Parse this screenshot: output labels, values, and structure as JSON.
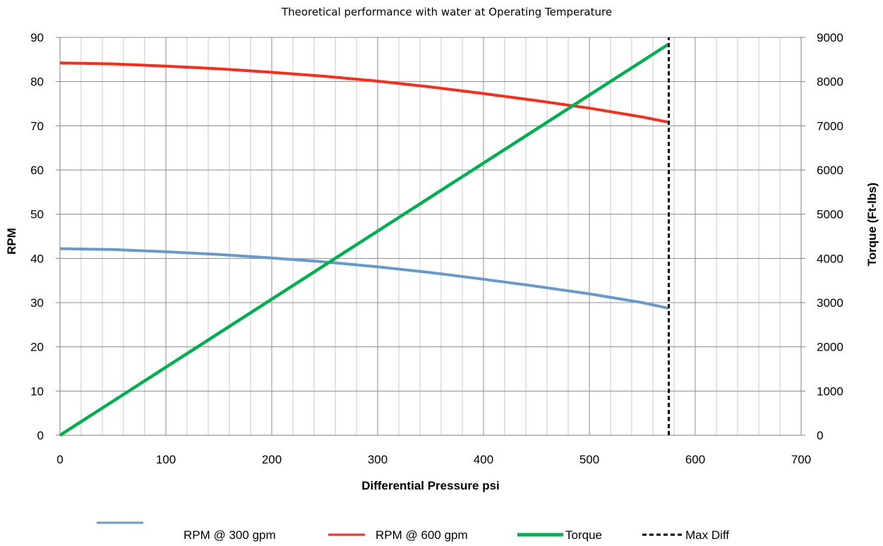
{
  "chart_data": {
    "type": "line",
    "title": "Theoretical performance with water at Operating Temperature",
    "xlabel": "Differential Pressure psi",
    "ylabel": "RPM",
    "y2label": "Torque (Ft-lbs)",
    "xlim": [
      0,
      700
    ],
    "ylim": [
      0,
      90
    ],
    "y2lim": [
      0,
      9000
    ],
    "x_ticks": [
      0,
      100,
      200,
      300,
      400,
      500,
      600,
      700
    ],
    "y_ticks": [
      0,
      10,
      20,
      30,
      40,
      50,
      60,
      70,
      80,
      90
    ],
    "y2_ticks": [
      0,
      1000,
      2000,
      3000,
      4000,
      5000,
      6000,
      7000,
      8000,
      9000
    ],
    "x_minor_step": 20,
    "grid": true,
    "legend_position": "bottom",
    "series": [
      {
        "name": "RPM @ 300 gpm",
        "axis": "left",
        "color": "#6699cc",
        "style": "solid",
        "x": [
          0,
          50,
          100,
          150,
          200,
          250,
          300,
          350,
          400,
          450,
          500,
          550,
          575
        ],
        "values": [
          42.2,
          42.0,
          41.5,
          40.9,
          40.1,
          39.2,
          38.1,
          36.8,
          35.3,
          33.7,
          32.0,
          30.0,
          28.7
        ]
      },
      {
        "name": "RPM @ 600 gpm",
        "axis": "left",
        "color": "#ff2a1a",
        "style": "solid",
        "x": [
          0,
          50,
          100,
          150,
          200,
          250,
          300,
          350,
          400,
          450,
          500,
          550,
          575
        ],
        "values": [
          84.2,
          84.0,
          83.5,
          82.9,
          82.1,
          81.2,
          80.1,
          78.8,
          77.3,
          75.7,
          74.0,
          72.0,
          70.8
        ]
      },
      {
        "name": "Torque",
        "axis": "right",
        "color": "#00b050",
        "style": "solid",
        "x": [
          0,
          575
        ],
        "values": [
          0,
          8850
        ]
      },
      {
        "name": "Max Diff",
        "axis": "left",
        "color": "#000000",
        "style": "dashed",
        "x": [
          575,
          575
        ],
        "values": [
          0,
          90
        ]
      }
    ]
  }
}
